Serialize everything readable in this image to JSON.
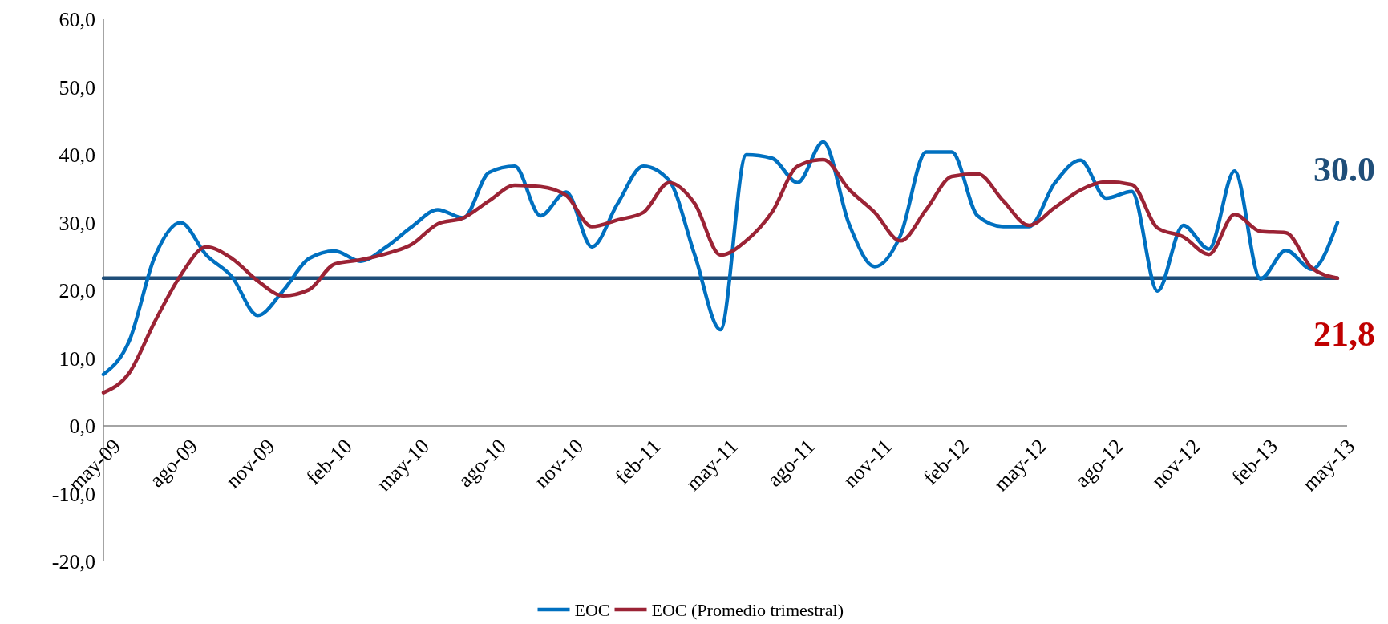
{
  "chart_data": {
    "type": "line",
    "categories": [
      "may-09",
      null,
      null,
      "ago-09",
      null,
      null,
      "nov-09",
      null,
      null,
      "feb-10",
      null,
      null,
      "may-10",
      null,
      null,
      "ago-10",
      null,
      null,
      "nov-10",
      null,
      null,
      "feb-11",
      null,
      null,
      "may-11",
      null,
      null,
      "ago-11",
      null,
      null,
      "nov-11",
      null,
      null,
      "feb-12",
      null,
      null,
      "may-12",
      null,
      null,
      "ago-12",
      null,
      null,
      "nov-12",
      null,
      null,
      "feb-13",
      null,
      null,
      "may-13"
    ],
    "series": [
      {
        "name": "EOC",
        "color": "#0070c0",
        "values": [
          7.6,
          12.5,
          25,
          30,
          25.2,
          22,
          16.3,
          20,
          24.7,
          25.8,
          24.3,
          26.4,
          29.4,
          31.9,
          30.7,
          37.4,
          38.3,
          31,
          34.5,
          26.4,
          32.8,
          38.3,
          36.2,
          25.2,
          14.2,
          40,
          39.5,
          35.9,
          41.9,
          29.8,
          23.5,
          28.1,
          40.4,
          40.4,
          31,
          29.4,
          29.4,
          35.8,
          39.2,
          33.6,
          34.6,
          19.9,
          29.6,
          26.1,
          37.6,
          21.7,
          25.9,
          23.1,
          30
        ]
      },
      {
        "name": "EOC (Promedio trimestral)",
        "color": "#9b2335",
        "values": [
          4.9,
          7.8,
          15.4,
          22.2,
          26.4,
          24.7,
          21.4,
          19.2,
          20.1,
          23.9,
          24.5,
          25.4,
          26.8,
          29.8,
          30.7,
          33.2,
          35.5,
          35.3,
          34,
          29.4,
          30.4,
          31.5,
          35.9,
          32.8,
          25.2,
          27.3,
          31.5,
          38.3,
          39.3,
          34.9,
          31.5,
          27.3,
          31.9,
          36.8,
          37.2,
          33.2,
          29.6,
          32.2,
          34.8,
          36,
          35.6,
          29.2,
          27.9,
          25.3,
          31.2,
          28.7,
          28.5,
          23.3,
          21.8
        ]
      }
    ],
    "ylim": [
      -20,
      60
    ],
    "yticks": [
      {
        "value": -20,
        "label": "-20,0"
      },
      {
        "value": -10,
        "label": "-10,0"
      },
      {
        "value": 0,
        "label": "0,0"
      },
      {
        "value": 10,
        "label": "10,0"
      },
      {
        "value": 20,
        "label": "20,0"
      },
      {
        "value": 30,
        "label": "30,0"
      },
      {
        "value": 40,
        "label": "40,0"
      },
      {
        "value": 50,
        "label": "50,0"
      },
      {
        "value": 60,
        "label": "60,0"
      }
    ],
    "ref_lines": [
      {
        "axis": "y",
        "value": 21.8,
        "color": "#1f4e79"
      }
    ],
    "annotations": [
      "30.0",
      "21,8"
    ],
    "legend": "bottom",
    "marker": "none",
    "line_style": "solid",
    "grid": false
  }
}
